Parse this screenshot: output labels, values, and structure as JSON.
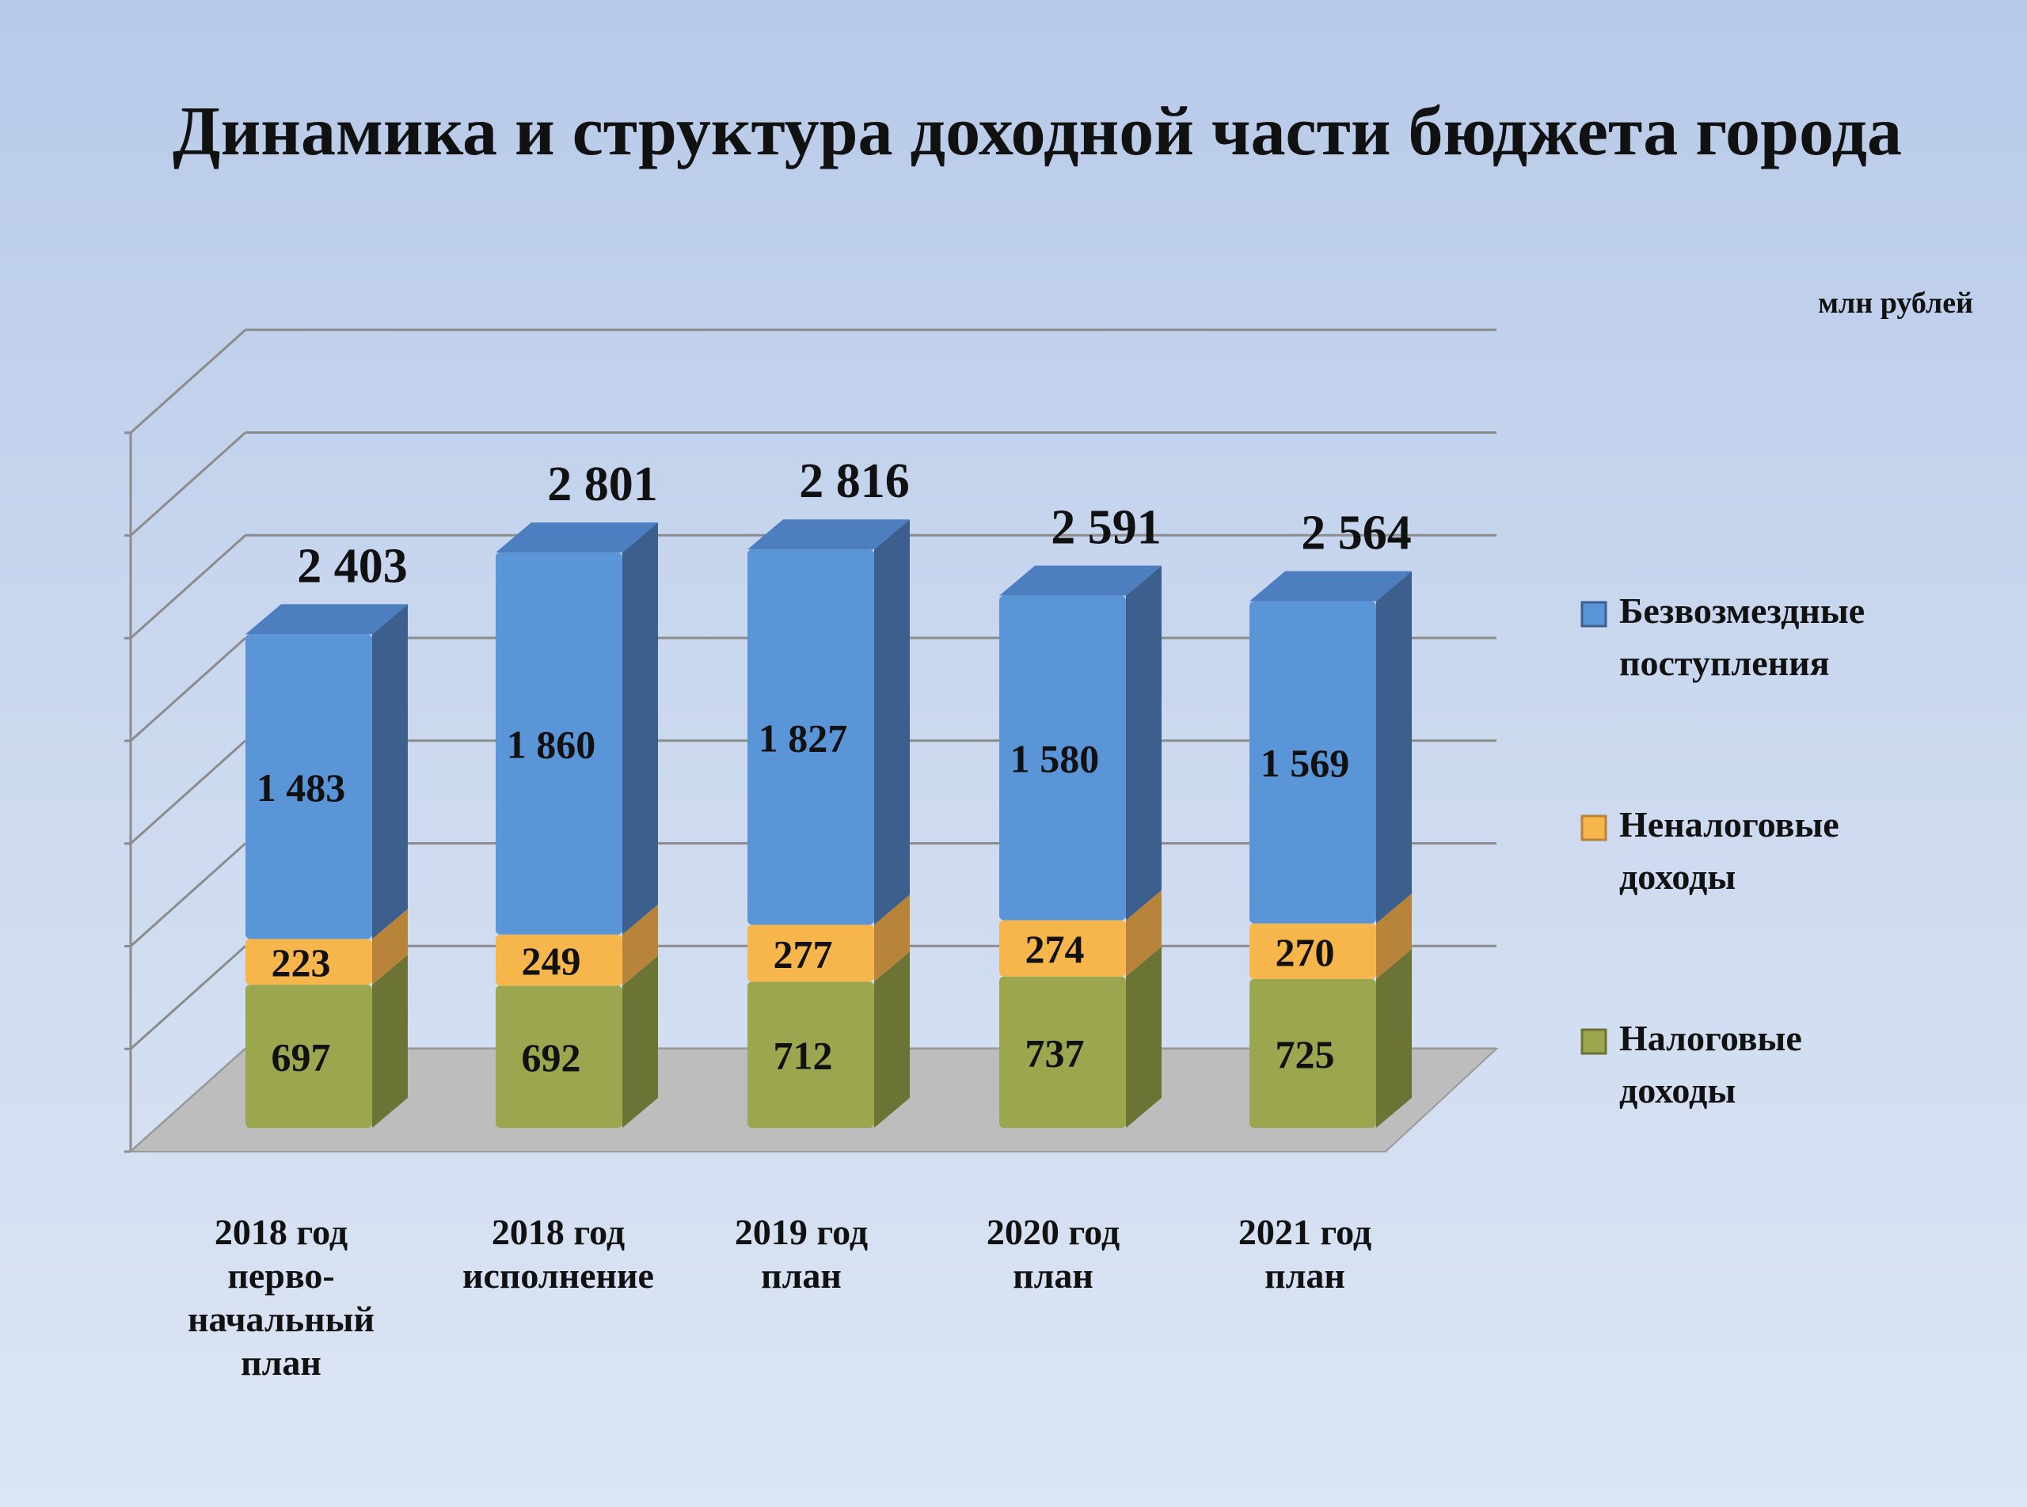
{
  "chart_data": {
    "type": "bar",
    "stacked": true,
    "title": "Динамика и структура доходной части бюджета города",
    "unit_label": "млн рублей",
    "categories": [
      [
        "2018 год",
        "перво-",
        "начальный",
        "план"
      ],
      [
        "2018 год",
        "исполнение"
      ],
      [
        "2019 год",
        "план"
      ],
      [
        "2020 год",
        "план"
      ],
      [
        "2021 год",
        "план"
      ]
    ],
    "series": [
      {
        "name": "Налоговые доходы",
        "legend_lines": [
          "Налоговые",
          "доходы"
        ],
        "values": [
          697,
          692,
          712,
          737,
          725
        ],
        "color": "#9ba64f",
        "side_color": "#6b7335",
        "top_color": "#b3bd64"
      },
      {
        "name": "Неналоговые доходы",
        "legend_lines": [
          "Неналоговые",
          "доходы"
        ],
        "values": [
          223,
          249,
          277,
          274,
          270
        ],
        "color": "#f6b64b",
        "side_color": "#b8843a",
        "top_color": "#f8c66a"
      },
      {
        "name": "Безвозмездные поступления",
        "legend_lines": [
          "Безвозмездные",
          "поступления"
        ],
        "values": [
          1483,
          1860,
          1827,
          1580,
          1569
        ],
        "color": "#5a95d8",
        "side_color": "#3d5f8e",
        "top_color": "#4d7fc0"
      }
    ],
    "totals": [
      "2 403",
      "2 801",
      "2 816",
      "2 591",
      "2 564"
    ],
    "segment_labels": [
      [
        "697",
        "692",
        "712",
        "737",
        "725"
      ],
      [
        "223",
        "249",
        "277",
        "274",
        "270"
      ],
      [
        "1 483",
        "1 860",
        "1 827",
        "1 580",
        "1 569"
      ]
    ],
    "ylim": [
      0,
      3500
    ],
    "grid": true,
    "legend_position": "right",
    "floor_color": "#bdbdbd",
    "grid_color": "#8c8c8c"
  }
}
